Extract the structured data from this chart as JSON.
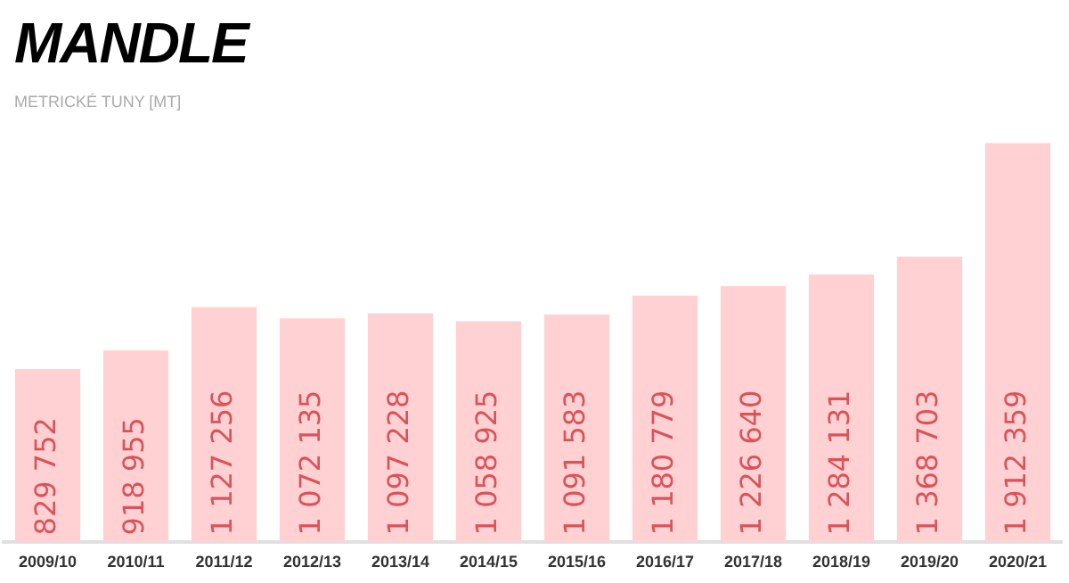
{
  "chart_data": {
    "type": "bar",
    "title": "MANDLE",
    "subtitle": "METRICKÉ TUNY [MT]",
    "tick_labels": "x",
    "categories": [
      "2009/10",
      "2010/11",
      "2011/12",
      "2012/13",
      "2013/14",
      "2014/15",
      "2015/16",
      "2016/17",
      "2017/18",
      "2018/19",
      "2019/20",
      "2020/21"
    ],
    "values": [
      829752,
      918955,
      1127256,
      1072135,
      1097228,
      1058925,
      1091583,
      1180779,
      1226640,
      1284131,
      1368703,
      1912359
    ],
    "value_labels": [
      "829 752",
      "918 955",
      "1 127 256",
      "1 072 135",
      "1 097 228",
      "1 058 925",
      "1 091 583",
      "1 180 779",
      "1 226 640",
      "1 284 131",
      "1 368 703",
      "1 912 359"
    ],
    "color": "#ffd1d2",
    "grid": false,
    "legend": false
  }
}
